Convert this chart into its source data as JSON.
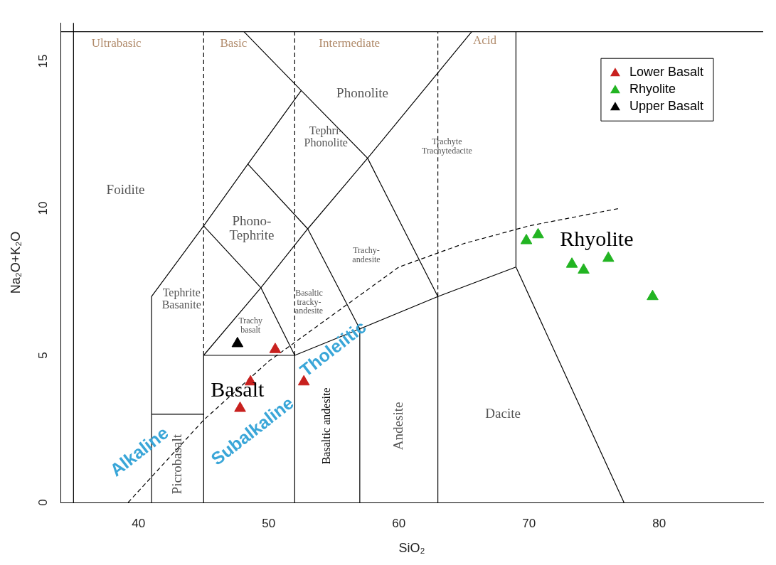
{
  "chart_data": {
    "type": "scatter",
    "xlabel": "SiO₂",
    "ylabel": "Na₂O+K₂O",
    "xlim": [
      34,
      88
    ],
    "ylim": [
      0,
      16.3
    ],
    "xticks": [
      40,
      50,
      60,
      70,
      80
    ],
    "yticks": [
      0,
      5,
      10,
      15
    ],
    "grid": false,
    "legend": "top right",
    "series": [
      {
        "name": "Lower Basalt",
        "color": "#c8201e",
        "marker": "triangle",
        "x": [
          50.5,
          48.6,
          47.8,
          52.7
        ],
        "values": [
          5.2,
          4.1,
          3.2,
          4.1
        ]
      },
      {
        "name": "Rhyolite",
        "color": "#22b422",
        "marker": "triangle",
        "x": [
          69.8,
          70.7,
          73.3,
          74.2,
          76.1,
          79.5
        ],
        "values": [
          8.9,
          9.1,
          8.1,
          7.9,
          8.3,
          7.0
        ]
      },
      {
        "name": "Upper Basalt",
        "color": "#000000",
        "marker": "triangle",
        "x": [
          47.6
        ],
        "values": [
          5.4
        ]
      },
      {
        "type": "line",
        "color": "#000000",
        "line_style": "solid",
        "x": [
          41,
          41,
          45,
          48.4,
          52.5
        ],
        "values": [
          0,
          7,
          9.4,
          11.5,
          14
        ]
      },
      {
        "type": "line",
        "color": "#000000",
        "line_style": "solid",
        "x": [
          41,
          45
        ],
        "values": [
          3,
          3
        ]
      },
      {
        "type": "line",
        "color": "#000000",
        "line_style": "solid",
        "x": [
          45,
          45,
          52,
          52
        ],
        "values": [
          0,
          5,
          5,
          0
        ]
      },
      {
        "type": "line",
        "color": "#000000",
        "line_style": "solid",
        "x": [
          45,
          49.4,
          52
        ],
        "values": [
          9.4,
          7.3,
          5
        ]
      },
      {
        "type": "line",
        "color": "#000000",
        "line_style": "solid",
        "x": [
          45,
          49.4,
          53,
          57.6,
          65.6
        ],
        "values": [
          5,
          7.3,
          9.3,
          11.7,
          16
        ]
      },
      {
        "type": "line",
        "color": "#000000",
        "line_style": "solid",
        "x": [
          48.4,
          53,
          57,
          57
        ],
        "values": [
          11.5,
          9.3,
          5.9,
          0
        ]
      },
      {
        "type": "line",
        "color": "#000000",
        "line_style": "solid",
        "x": [
          48.1,
          52.5,
          57.6,
          63,
          63
        ],
        "values": [
          16,
          14,
          11.7,
          7,
          0
        ]
      },
      {
        "type": "line",
        "color": "#000000",
        "line_style": "solid",
        "x": [
          52,
          57,
          63,
          69,
          77.3
        ],
        "values": [
          5,
          5.9,
          7,
          8,
          0
        ]
      },
      {
        "type": "line",
        "color": "#000000",
        "line_style": "solid",
        "x": [
          69,
          69
        ],
        "values": [
          8,
          16
        ]
      },
      {
        "type": "line",
        "color": "#000000",
        "line_style": "dashed",
        "x": [
          45,
          45
        ],
        "values": [
          5,
          16
        ]
      },
      {
        "type": "line",
        "color": "#000000",
        "line_style": "dashed",
        "x": [
          52,
          52
        ],
        "values": [
          5,
          16
        ]
      },
      {
        "type": "line",
        "color": "#000000",
        "line_style": "dashed",
        "x": [
          63,
          63
        ],
        "values": [
          7,
          16
        ]
      },
      {
        "type": "line",
        "color": "#000000",
        "line_style": "dashed",
        "x": [
          39.2,
          45,
          50,
          55,
          60,
          65,
          70,
          77
        ],
        "values": [
          0,
          2.8,
          4.8,
          6.4,
          8,
          8.8,
          9.4,
          10
        ]
      }
    ],
    "ref_lines": [
      {
        "axis": "x",
        "value": 35,
        "color": "#000000",
        "line_style": "solid"
      },
      {
        "axis": "y",
        "value": 16,
        "color": "#000000",
        "line_style": "solid"
      }
    ],
    "annotations": [
      "Ultrabasic",
      "Basic",
      "Intermediate",
      "Acid",
      "Phonolite",
      "Tephri-\nPhonolite",
      "Trachyte\nTrachytedacite",
      "Foidite",
      "Phono-\nTephrite",
      "Tephrite\nBasanite",
      "Trachy-\nandesite",
      "Basaltic\ntracky-\nandesite",
      "Trachy\nbasalt",
      "Basalt",
      "Rhyolite",
      "Dacite",
      "Andesite",
      "Basaltic andesite",
      "Picrobasalt",
      "Alkaline",
      "Subalkaline",
      "Tholeiitic"
    ]
  }
}
